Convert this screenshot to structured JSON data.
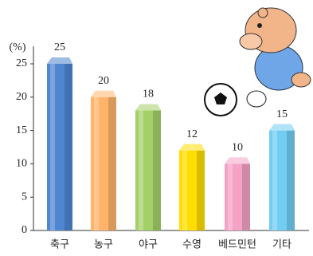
{
  "chart_data": {
    "type": "bar",
    "y_label": "(%)",
    "categories": [
      "축구",
      "농구",
      "야구",
      "수영",
      "베드민턴",
      "기타"
    ],
    "values": [
      25,
      20,
      18,
      12,
      10,
      15
    ],
    "colors": [
      "#4f86d0",
      "#ffb46a",
      "#a4d068",
      "#ffdd00",
      "#f4a3c6",
      "#72cdf3"
    ],
    "ylim": [
      0,
      25
    ],
    "yticks": [
      0,
      5,
      10,
      15,
      20,
      25
    ]
  }
}
